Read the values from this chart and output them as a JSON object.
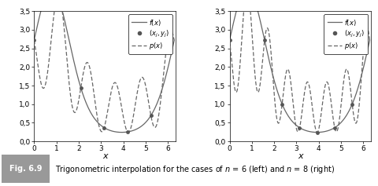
{
  "caption_label": "Fig. 6.9",
  "caption_text": "Trigonometric interpolation for the cases of n = 6 (left) and n = 8 (right)",
  "xlim": [
    0,
    6.35
  ],
  "ylim": [
    0.0,
    3.5
  ],
  "ytick_labels": [
    "0,0",
    "0,5",
    "1,0",
    "1,5",
    "2,0",
    "2,5",
    "3,0",
    "3,5"
  ],
  "ytick_vals": [
    0.0,
    0.5,
    1.0,
    1.5,
    2.0,
    2.5,
    3.0,
    3.5
  ],
  "xticks": [
    0,
    1,
    2,
    3,
    4,
    5,
    6
  ],
  "xlabel": "x",
  "n_values": [
    6,
    8
  ],
  "line_color": "#666666",
  "dashed_color": "#666666",
  "node_color": "#555555",
  "figsize": [
    4.81,
    2.37
  ],
  "dpi": 100,
  "background_color": "#ffffff",
  "caption_bg": "#bbbbbb",
  "caption_box_bg": "#999999"
}
